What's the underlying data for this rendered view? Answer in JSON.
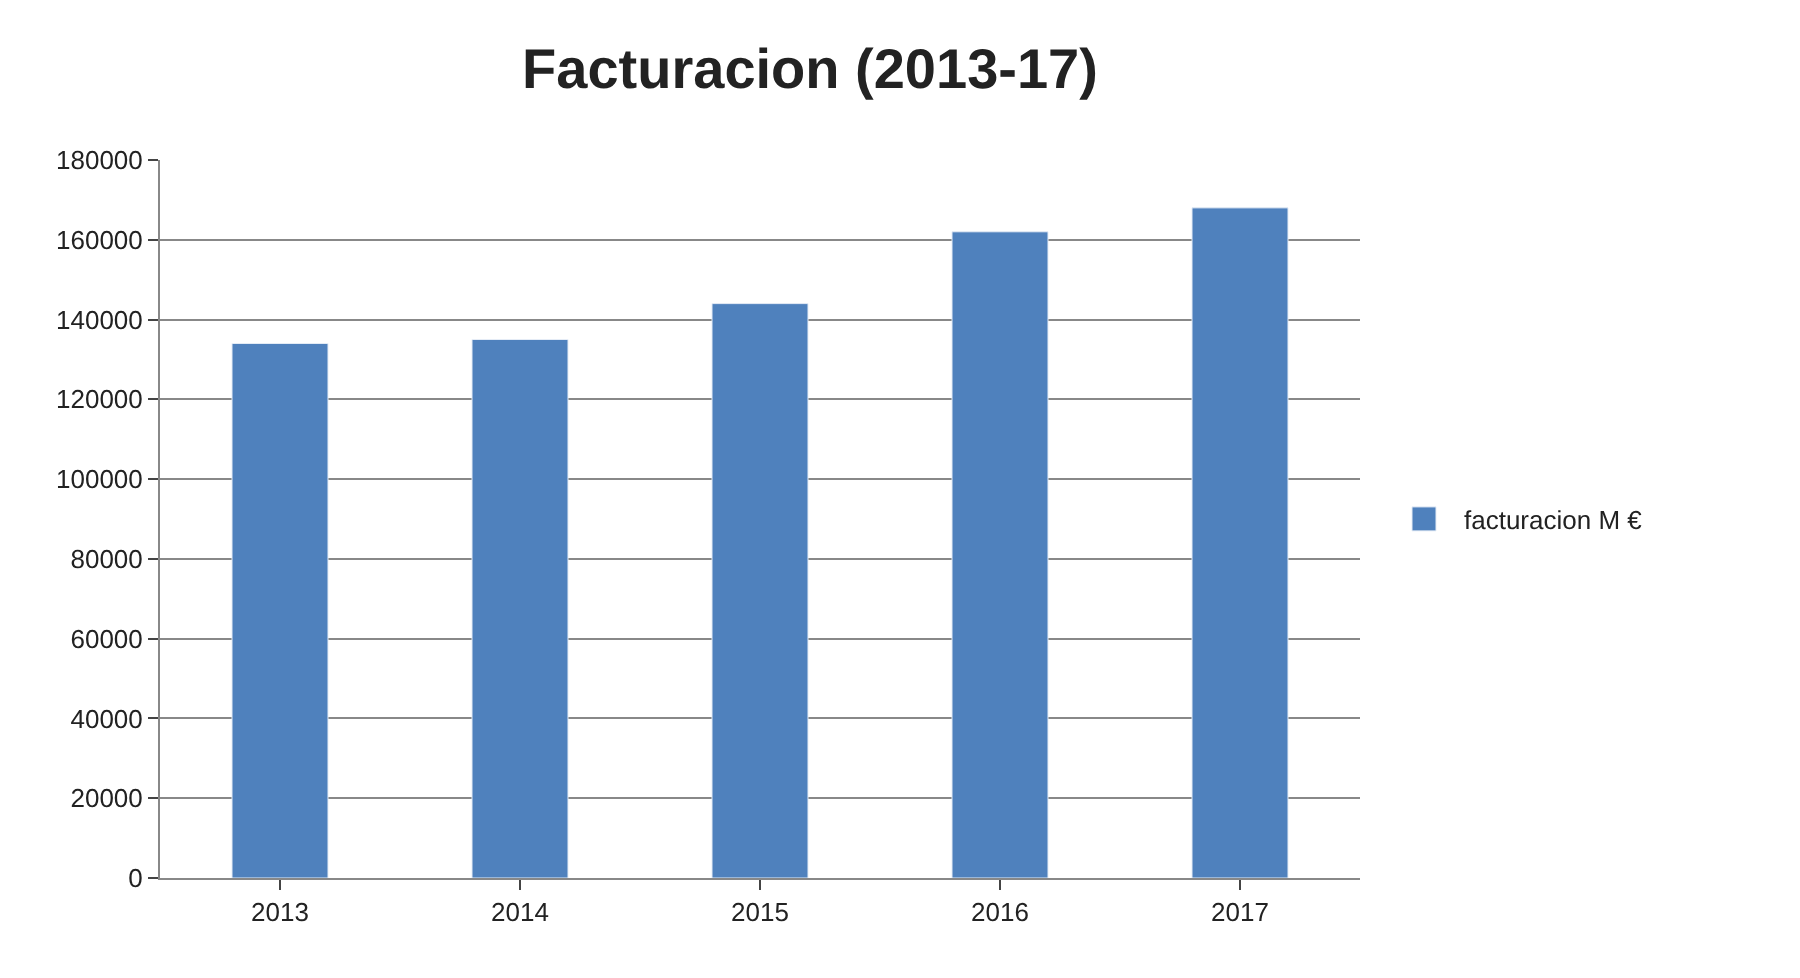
{
  "chart_data": {
    "type": "bar",
    "title": "Facturacion (2013-17)",
    "categories": [
      "2013",
      "2014",
      "2015",
      "2016",
      "2017"
    ],
    "series": [
      {
        "name": "facturacion M €",
        "color": "#4f81bd",
        "values": [
          134000,
          135000,
          144000,
          162000,
          168000
        ]
      }
    ],
    "ylim": [
      0,
      180000
    ],
    "yticks": [
      0,
      20000,
      40000,
      60000,
      80000,
      100000,
      120000,
      140000,
      160000,
      180000
    ],
    "grid": "y",
    "legend": "right"
  }
}
